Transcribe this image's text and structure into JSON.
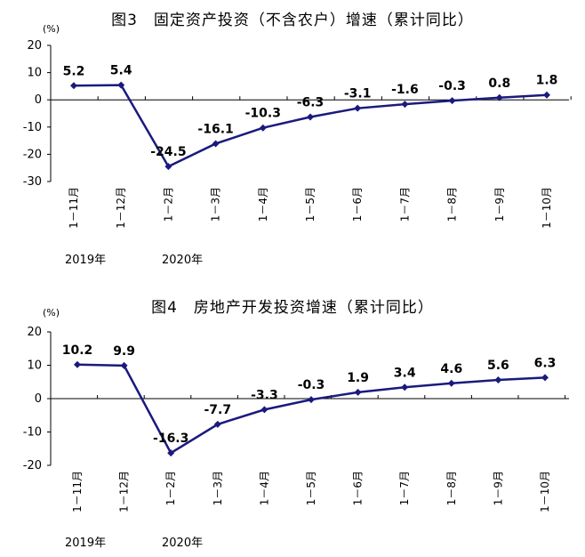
{
  "chart_data": [
    {
      "type": "line",
      "title": "图3　固定资产投资（不含农户）增速（累计同比）",
      "unit": "(%)",
      "categories": [
        "1－11月",
        "1－12月",
        "1－2月",
        "1－3月",
        "1－4月",
        "1－5月",
        "1－6月",
        "1－7月",
        "1－8月",
        "1－9月",
        "1－10月"
      ],
      "years": [
        {
          "label": "2019年",
          "start_index": 0
        },
        {
          "label": "2020年",
          "start_index": 2
        }
      ],
      "values": [
        5.2,
        5.4,
        -24.5,
        -16.1,
        -10.3,
        -6.3,
        -3.1,
        -1.6,
        -0.3,
        0.8,
        1.8
      ],
      "data_labels": [
        "5.2",
        "5.4",
        "-24.5",
        "-16.1",
        "-10.3",
        "-6.3",
        "-3.1",
        "-1.6",
        "-0.3",
        "0.8",
        "1.8"
      ],
      "yticks": [
        20,
        10,
        0,
        -10,
        -20,
        -30
      ],
      "ylim": [
        -30,
        20
      ],
      "grid": false,
      "color": "#1a1a7e"
    },
    {
      "type": "line",
      "title": "图4　房地产开发投资增速（累计同比）",
      "unit": "(%)",
      "categories": [
        "1－11月",
        "1－12月",
        "1－2月",
        "1－3月",
        "1－4月",
        "1－5月",
        "1－6月",
        "1－7月",
        "1－8月",
        "1－9月",
        "1－10月"
      ],
      "years": [
        {
          "label": "2019年",
          "start_index": 0
        },
        {
          "label": "2020年",
          "start_index": 2
        }
      ],
      "values": [
        10.2,
        9.9,
        -16.3,
        -7.7,
        -3.3,
        -0.3,
        1.9,
        3.4,
        4.6,
        5.6,
        6.3
      ],
      "data_labels": [
        "10.2",
        "9.9",
        "-16.3",
        "-7.7",
        "-3.3",
        "-0.3",
        "1.9",
        "3.4",
        "4.6",
        "5.6",
        "6.3"
      ],
      "yticks": [
        20,
        10,
        0,
        -10,
        -20
      ],
      "ylim": [
        -20,
        20
      ],
      "grid": false,
      "color": "#1a1a7e"
    }
  ]
}
